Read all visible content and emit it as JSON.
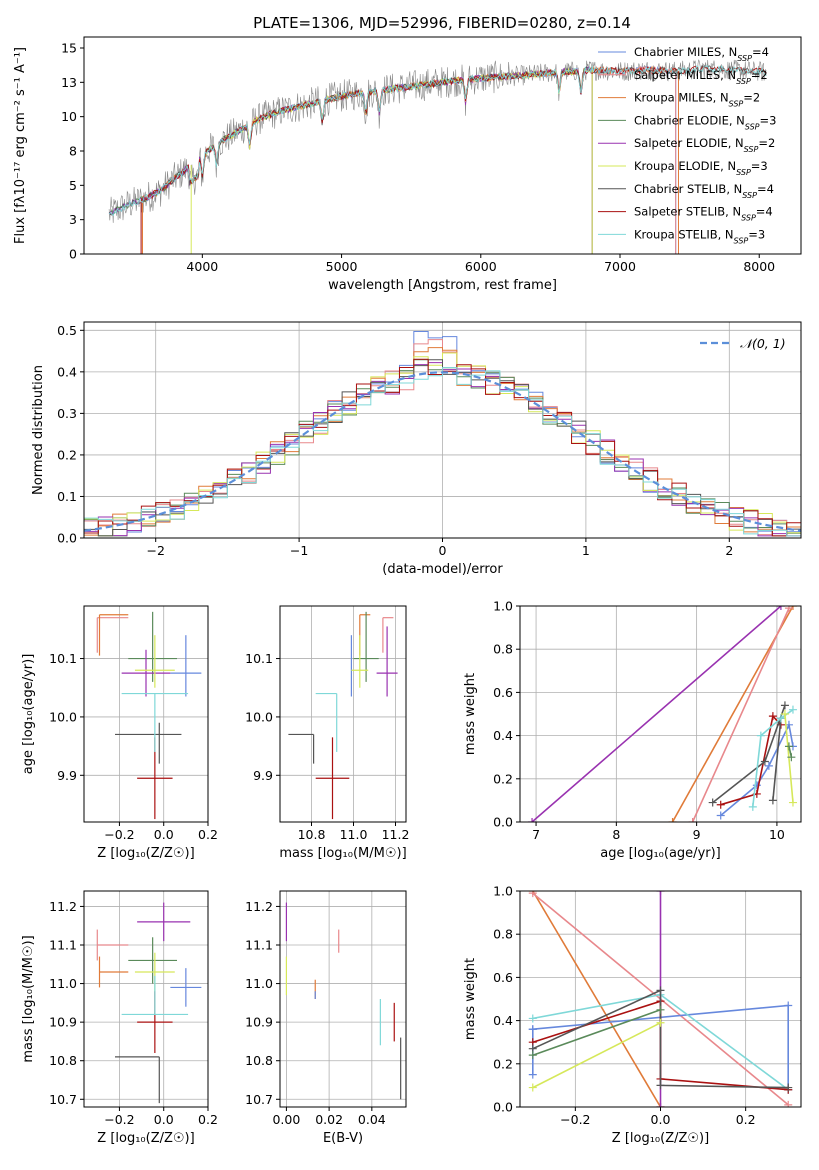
{
  "figure_title": "PLATE=1306, MJD=52996, FIBERID=0280, z=0.14",
  "colors": {
    "Chabrier MILES": "#6688dd",
    "Salpeter MILES": "#e8888c",
    "Kroupa MILES": "#e07b39",
    "Chabrier ELODIE": "#5a8a5a",
    "Salpeter ELODIE": "#9932b0",
    "Kroupa ELODIE": "#d6e85a",
    "Chabrier STELIB": "#555555",
    "Salpeter STELIB": "#aa1111",
    "Kroupa STELIB": "#7fd8d8",
    "grid": "#b0b0b0",
    "normal_curve": "#5b8fd9"
  },
  "legend_html": [
    {
      "model": "Chabrier MILES",
      "n": "4"
    },
    {
      "model": "Salpeter MILES",
      "n": "2"
    },
    {
      "model": "Kroupa MILES",
      "n": "2"
    },
    {
      "model": "Chabrier ELODIE",
      "n": "3"
    },
    {
      "model": "Salpeter ELODIE",
      "n": "2"
    },
    {
      "model": "Kroupa ELODIE",
      "n": "3"
    },
    {
      "model": "Chabrier STELIB",
      "n": "4"
    },
    {
      "model": "Salpeter STELIB",
      "n": "4"
    },
    {
      "model": "Kroupa STELIB",
      "n": "3"
    }
  ],
  "chart_data": [
    {
      "id": "spectrum",
      "type": "line",
      "xlabel": "wavelength [Angstrom, rest frame]",
      "ylabel": "Flux [fλ10⁻¹⁷ erg cm⁻² s⁻¹ A⁻¹]",
      "xlim": [
        3150,
        8300
      ],
      "ylim": [
        0,
        15.8
      ],
      "xticks": [
        4000,
        5000,
        6000,
        7000,
        8000
      ],
      "yticks": [
        0.0,
        2.5,
        5.0,
        7.5,
        10.0,
        12.5,
        15.0
      ],
      "grid": false,
      "legend": "top-right",
      "continuum": {
        "x": [
          3330,
          3450,
          3600,
          3700,
          3800,
          3900,
          4000,
          4100,
          4200,
          4300,
          4400,
          4500,
          4600,
          4800,
          5000,
          5200,
          5500,
          5800,
          6000,
          6300,
          6500,
          6800,
          7000,
          7200,
          7400,
          7600,
          7800,
          8000,
          8050
        ],
        "y": [
          2.9,
          3.5,
          4.1,
          4.6,
          5.5,
          6.3,
          7.2,
          8.0,
          8.6,
          9.2,
          9.8,
          10.2,
          10.5,
          11.0,
          11.5,
          11.8,
          12.2,
          12.6,
          12.8,
          13.0,
          13.2,
          13.4,
          13.3,
          13.4,
          13.3,
          13.5,
          13.4,
          13.3,
          13.2
        ]
      },
      "model_range_start": [
        3570,
        3570,
        3570,
        3330,
        3330,
        3920,
        3330,
        3560,
        3330
      ],
      "model_range_end": [
        7400,
        7400,
        7420,
        6800,
        6800,
        6800,
        8050,
        8050,
        8050
      ]
    },
    {
      "id": "residual_hist",
      "type": "histogram",
      "xlabel": "(data-model)/error",
      "ylabel": "Normed distribution",
      "xlim": [
        -2.5,
        2.5
      ],
      "ylim": [
        0,
        0.52
      ],
      "xticks": [
        -2,
        -1,
        0,
        1,
        2
      ],
      "yticks": [
        0.0,
        0.1,
        0.2,
        0.3,
        0.4,
        0.5
      ],
      "grid": true,
      "legend": "top-right",
      "legend_label": "𝒩(0, 1)",
      "bin_width": 0.1,
      "peak_values": [
        0.5,
        0.49,
        0.47,
        0.45,
        0.44,
        0.46,
        0.43,
        0.44,
        0.43
      ]
    },
    {
      "id": "age_vs_Z",
      "type": "errorbar",
      "xlabel": "Z [log₁₀(Z/Z☉)]",
      "ylabel": "age [log₁₀(age/yr)]",
      "xlim": [
        -0.36,
        0.2
      ],
      "ylim": [
        9.82,
        10.19
      ],
      "xticks": [
        -0.2,
        0.0,
        0.2
      ],
      "yticks": [
        9.9,
        10.0,
        10.1
      ],
      "grid": true,
      "points": [
        {
          "model": "Chabrier MILES",
          "x": 0.1,
          "xerr": [
            0.07,
            0.07
          ],
          "y": 10.075,
          "yerr": [
            0.04,
            0.065
          ]
        },
        {
          "model": "Salpeter MILES",
          "x": -0.3,
          "xerr": [
            0.0,
            0.14
          ],
          "y": 10.17,
          "yerr": [
            0.06,
            0.0
          ]
        },
        {
          "model": "Kroupa MILES",
          "x": -0.29,
          "xerr": [
            0.0,
            0.13
          ],
          "y": 10.175,
          "yerr": [
            0.07,
            0.0
          ]
        },
        {
          "model": "Chabrier ELODIE",
          "x": -0.05,
          "xerr": [
            0.11,
            0.11
          ],
          "y": 10.1,
          "yerr": [
            0.04,
            0.08
          ]
        },
        {
          "model": "Salpeter ELODIE",
          "x": -0.08,
          "xerr": [
            0.11,
            0.11
          ],
          "y": 10.075,
          "yerr": [
            0.04,
            0.04
          ]
        },
        {
          "model": "Kroupa ELODIE",
          "x": -0.04,
          "xerr": [
            0.09,
            0.09
          ],
          "y": 10.08,
          "yerr": [
            0.03,
            0.06
          ]
        },
        {
          "model": "Chabrier STELIB",
          "x": -0.02,
          "xerr": [
            0.2,
            0.1
          ],
          "y": 9.97,
          "yerr": [
            0.05,
            0.02
          ]
        },
        {
          "model": "Salpeter STELIB",
          "x": -0.04,
          "xerr": [
            0.08,
            0.08
          ],
          "y": 9.895,
          "yerr": [
            0.07,
            0.07
          ]
        },
        {
          "model": "Kroupa STELIB",
          "x": -0.04,
          "xerr": [
            0.15,
            0.15
          ],
          "y": 10.04,
          "yerr": [
            0.1,
            0.0
          ]
        }
      ]
    },
    {
      "id": "age_vs_mass",
      "type": "errorbar",
      "xlabel": "mass [log₁₀(M/M☉)]",
      "ylabel": "",
      "xlim": [
        10.65,
        11.25
      ],
      "ylim": [
        9.82,
        10.19
      ],
      "xticks": [
        10.8,
        11.0,
        11.2
      ],
      "yticks": [
        9.9,
        10.0,
        10.1
      ],
      "grid": true,
      "points": [
        {
          "model": "Chabrier MILES",
          "x": 10.99,
          "xerr": [
            0.0,
            0.0
          ],
          "y": 10.075,
          "yerr": [
            0.04,
            0.065
          ]
        },
        {
          "model": "Salpeter MILES",
          "x": 11.14,
          "xerr": [
            0.0,
            0.05
          ],
          "y": 10.17,
          "yerr": [
            0.06,
            0.0
          ]
        },
        {
          "model": "Kroupa MILES",
          "x": 11.03,
          "xerr": [
            0.0,
            0.05
          ],
          "y": 10.175,
          "yerr": [
            0.07,
            0.0
          ]
        },
        {
          "model": "Chabrier ELODIE",
          "x": 11.06,
          "xerr": [
            0.06,
            0.06
          ],
          "y": 10.1,
          "yerr": [
            0.04,
            0.08
          ]
        },
        {
          "model": "Salpeter ELODIE",
          "x": 11.16,
          "xerr": [
            0.05,
            0.05
          ],
          "y": 10.075,
          "yerr": [
            0.04,
            0.08
          ]
        },
        {
          "model": "Kroupa ELODIE",
          "x": 11.03,
          "xerr": [
            0.04,
            0.04
          ],
          "y": 10.08,
          "yerr": [
            0.03,
            0.06
          ]
        },
        {
          "model": "Chabrier STELIB",
          "x": 10.81,
          "xerr": [
            0.12,
            0.0
          ],
          "y": 9.97,
          "yerr": [
            0.05,
            0.0
          ]
        },
        {
          "model": "Salpeter STELIB",
          "x": 10.9,
          "xerr": [
            0.08,
            0.08
          ],
          "y": 9.895,
          "yerr": [
            0.07,
            0.07
          ]
        },
        {
          "model": "Kroupa STELIB",
          "x": 10.92,
          "xerr": [
            0.1,
            0.0
          ],
          "y": 10.04,
          "yerr": [
            0.1,
            0.0
          ]
        }
      ]
    },
    {
      "id": "weight_vs_age",
      "type": "line",
      "xlabel": "age [log₁₀(age/yr)]",
      "ylabel": "mass weight",
      "xlim": [
        6.8,
        10.3
      ],
      "ylim": [
        0,
        1.0
      ],
      "xticks": [
        7,
        8,
        9,
        10
      ],
      "yticks": [
        0.0,
        0.2,
        0.4,
        0.6,
        0.8,
        1.0
      ],
      "grid": true,
      "series": [
        {
          "model": "Salpeter ELODIE",
          "x": [
            6.95,
            10.05
          ],
          "y": [
            0.0,
            1.0
          ]
        },
        {
          "model": "Kroupa MILES",
          "x": [
            8.7,
            10.2
          ],
          "y": [
            0.0,
            1.0
          ]
        },
        {
          "model": "Salpeter MILES",
          "x": [
            8.95,
            10.15
          ],
          "y": [
            0.0,
            0.99
          ]
        },
        {
          "model": "Chabrier MILES",
          "x": [
            9.3,
            9.75,
            9.9,
            10.15,
            10.2
          ],
          "y": [
            0.03,
            0.17,
            0.26,
            0.45,
            0.35
          ]
        },
        {
          "model": "Salpeter STELIB",
          "x": [
            9.3,
            9.75,
            9.95,
            10.05
          ],
          "y": [
            0.08,
            0.13,
            0.49,
            0.45
          ]
        },
        {
          "model": "Chabrier STELIB",
          "x": [
            9.2,
            9.85,
            10.1
          ],
          "y": [
            0.09,
            0.28,
            0.54
          ]
        },
        {
          "model": "Chabrier STELIB",
          "x": [
            9.95,
            10.05
          ],
          "y": [
            0.1,
            0.48
          ]
        },
        {
          "model": "Kroupa STELIB",
          "x": [
            9.7,
            9.8,
            10.05,
            10.2
          ],
          "y": [
            0.07,
            0.4,
            0.48,
            0.52
          ]
        },
        {
          "model": "Kroupa ELODIE",
          "x": [
            10.1,
            10.2
          ],
          "y": [
            0.5,
            0.09
          ]
        },
        {
          "model": "Chabrier ELODIE",
          "x": [
            10.15,
            10.18
          ],
          "y": [
            0.35,
            0.3
          ]
        }
      ]
    },
    {
      "id": "mass_vs_Z",
      "type": "errorbar",
      "xlabel": "Z [log₁₀(Z/Z☉)]",
      "ylabel": "mass [log₁₀(M/M☉)]",
      "xlim": [
        -0.36,
        0.2
      ],
      "ylim": [
        10.68,
        11.24
      ],
      "xticks": [
        -0.2,
        0.0,
        0.2
      ],
      "yticks": [
        10.7,
        10.8,
        10.9,
        11.0,
        11.1,
        11.2
      ],
      "grid": true,
      "points": [
        {
          "model": "Chabrier MILES",
          "x": 0.1,
          "xerr": [
            0.07,
            0.07
          ],
          "y": 10.99,
          "yerr": [
            0.05,
            0.05
          ]
        },
        {
          "model": "Salpeter MILES",
          "x": -0.3,
          "xerr": [
            0.0,
            0.14
          ],
          "y": 11.1,
          "yerr": [
            0.04,
            0.04
          ]
        },
        {
          "model": "Kroupa MILES",
          "x": -0.29,
          "xerr": [
            0.0,
            0.13
          ],
          "y": 11.03,
          "yerr": [
            0.04,
            0.04
          ]
        },
        {
          "model": "Chabrier ELODIE",
          "x": -0.05,
          "xerr": [
            0.11,
            0.11
          ],
          "y": 11.06,
          "yerr": [
            0.06,
            0.06
          ]
        },
        {
          "model": "Salpeter ELODIE",
          "x": 0.0,
          "xerr": [
            0.12,
            0.12
          ],
          "y": 11.16,
          "yerr": [
            0.05,
            0.05
          ]
        },
        {
          "model": "Kroupa ELODIE",
          "x": -0.04,
          "xerr": [
            0.09,
            0.09
          ],
          "y": 11.03,
          "yerr": [
            0.05,
            0.05
          ]
        },
        {
          "model": "Chabrier STELIB",
          "x": -0.02,
          "xerr": [
            0.2,
            0.0
          ],
          "y": 10.81,
          "yerr": [
            0.12,
            0.0
          ]
        },
        {
          "model": "Salpeter STELIB",
          "x": -0.04,
          "xerr": [
            0.08,
            0.08
          ],
          "y": 10.9,
          "yerr": [
            0.08,
            0.08
          ]
        },
        {
          "model": "Kroupa STELIB",
          "x": -0.04,
          "xerr": [
            0.15,
            0.15
          ],
          "y": 10.92,
          "yerr": [
            0.0,
            0.1
          ]
        }
      ]
    },
    {
      "id": "mass_vs_ebv",
      "type": "errorbar",
      "xlabel": "E(B-V)",
      "ylabel": "",
      "xlim": [
        -0.003,
        0.056
      ],
      "ylim": [
        10.68,
        11.24
      ],
      "xticks": [
        0.0,
        0.02,
        0.04
      ],
      "yticks": [
        10.7,
        10.8,
        10.9,
        11.0,
        11.1,
        11.2
      ],
      "grid": true,
      "points": [
        {
          "model": "Salpeter ELODIE",
          "x": 0.0,
          "y": 11.16,
          "yerr": [
            0.05,
            0.05
          ]
        },
        {
          "model": "Kroupa ELODIE",
          "x": 0.0,
          "y": 11.02,
          "yerr": [
            0.05,
            0.05
          ]
        },
        {
          "model": "Salpeter MILES",
          "x": 0.0245,
          "y": 11.11,
          "yerr": [
            0.03,
            0.03
          ]
        },
        {
          "model": "Kroupa MILES",
          "x": 0.0135,
          "y": 11.01,
          "yerr": [
            0.05,
            0.0
          ]
        },
        {
          "model": "Chabrier MILES",
          "x": 0.0135,
          "y": 10.98,
          "yerr": [
            0.02,
            0.0
          ]
        },
        {
          "model": "Kroupa STELIB",
          "x": 0.044,
          "y": 10.9,
          "yerr": [
            0.06,
            0.06
          ]
        },
        {
          "model": "Salpeter STELIB",
          "x": 0.0505,
          "y": 10.9,
          "yerr": [
            0.05,
            0.05
          ]
        },
        {
          "model": "Chabrier STELIB",
          "x": 0.0535,
          "y": 10.78,
          "yerr": [
            0.08,
            0.08
          ]
        }
      ]
    },
    {
      "id": "weight_vs_Z",
      "type": "line",
      "xlabel": "Z [log₁₀(Z/Z☉)]",
      "ylabel": "mass weight",
      "xlim": [
        -0.33,
        0.33
      ],
      "ylim": [
        0,
        1.0
      ],
      "xticks": [
        -0.2,
        0.0,
        0.2
      ],
      "yticks": [
        0.0,
        0.2,
        0.4,
        0.6,
        0.8,
        1.0
      ],
      "grid": true,
      "series": [
        {
          "model": "Kroupa MILES",
          "x": [
            -0.3,
            0.0
          ],
          "y": [
            1.0,
            0.0
          ]
        },
        {
          "model": "Salpeter MILES",
          "x": [
            -0.3,
            0.3
          ],
          "y": [
            0.99,
            0.01
          ]
        },
        {
          "model": "Salpeter ELODIE",
          "x": [
            0.0,
            0.0
          ],
          "y": [
            0.0,
            1.0
          ]
        },
        {
          "model": "Chabrier MILES",
          "x": [
            -0.3,
            0.3,
            0.3
          ],
          "y": [
            0.36,
            0.47,
            0.08
          ]
        },
        {
          "model": "Chabrier MILES",
          "x": [
            -0.3,
            -0.3
          ],
          "y": [
            0.15,
            0.36
          ]
        },
        {
          "model": "Kroupa STELIB",
          "x": [
            -0.3,
            0.0,
            0.3
          ],
          "y": [
            0.41,
            0.52,
            0.08
          ]
        },
        {
          "model": "Salpeter STELIB",
          "x": [
            -0.3,
            0.0,
            0.0,
            0.3
          ],
          "y": [
            0.3,
            0.49,
            0.13,
            0.08
          ]
        },
        {
          "model": "Chabrier STELIB",
          "x": [
            -0.3,
            0.0,
            0.0,
            0.3
          ],
          "y": [
            0.27,
            0.54,
            0.1,
            0.09
          ]
        },
        {
          "model": "Chabrier ELODIE",
          "x": [
            -0.3,
            0.0
          ],
          "y": [
            0.24,
            0.45
          ]
        },
        {
          "model": "Kroupa ELODIE",
          "x": [
            -0.3,
            0.0
          ],
          "y": [
            0.09,
            0.39
          ]
        }
      ]
    }
  ]
}
